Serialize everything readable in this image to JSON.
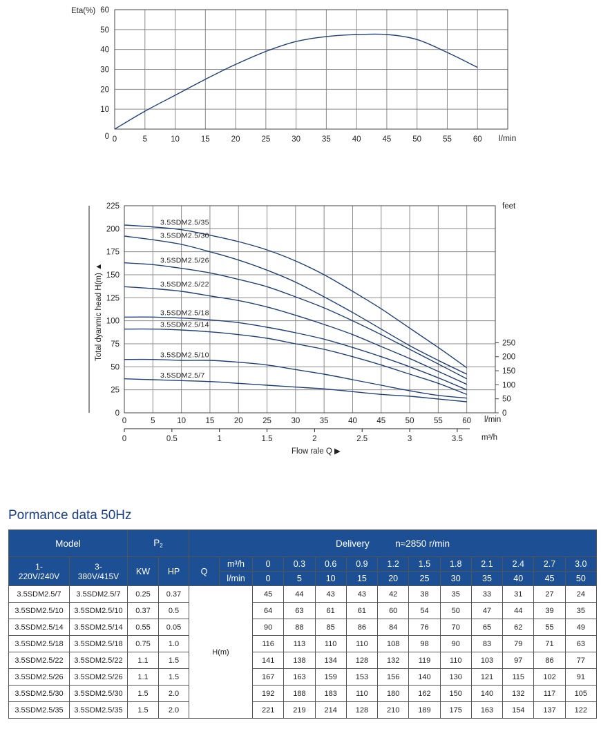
{
  "eff_chart": {
    "ylabel": "Eta(%)",
    "xunit": "l/min",
    "y_ticks": [
      "0",
      "10",
      "20",
      "30",
      "40",
      "50",
      "60"
    ],
    "x_ticks": [
      "0",
      "5",
      "10",
      "15",
      "20",
      "25",
      "30",
      "35",
      "40",
      "45",
      "50",
      "55",
      "60"
    ]
  },
  "head_chart": {
    "ylabel": "Total dyanmic head H(m) ▲",
    "right_unit": "feet",
    "y_ticks": [
      "0",
      "25",
      "50",
      "75",
      "100",
      "125",
      "150",
      "175",
      "200",
      "225"
    ],
    "feet_ticks": [
      "0",
      "50",
      "100",
      "150",
      "200",
      "250"
    ],
    "x_ticks": [
      "0",
      "5",
      "10",
      "15",
      "20",
      "25",
      "30",
      "35",
      "40",
      "45",
      "50",
      "55",
      "60"
    ],
    "x_unit": "l/min",
    "m3_ticks": [
      "0",
      "0.5",
      "1",
      "1.5",
      "2",
      "2.5",
      "3",
      "3.5"
    ],
    "m3_unit": "m³/h",
    "xlabel": "Flow rale Q ▶"
  },
  "chart_data": [
    {
      "type": "line",
      "title": "",
      "xlabel": "l/min",
      "ylabel": "Eta(%)",
      "xlim": [
        0,
        65
      ],
      "ylim": [
        0,
        60
      ],
      "grid": true,
      "series": [
        {
          "x": [
            0,
            5,
            10,
            15,
            20,
            25,
            30,
            35,
            40,
            45,
            50,
            55,
            60
          ],
          "values": [
            0,
            9,
            17,
            25,
            32.5,
            39,
            44,
            46.5,
            47.5,
            47.5,
            45,
            38.5,
            31
          ]
        }
      ]
    },
    {
      "type": "line",
      "title": "",
      "xlabel": "Flow rale Q",
      "ylabel": "Total dyanmic head H(m)",
      "xlim": [
        0,
        65
      ],
      "ylim": [
        0,
        225
      ],
      "y2label": "feet",
      "grid": true,
      "series": [
        {
          "name": "3.5SDM2.5/35",
          "x": [
            0,
            5,
            10,
            15,
            20,
            25,
            30,
            35,
            40,
            45,
            50,
            55,
            60
          ],
          "values": [
            204,
            202,
            199,
            193,
            186,
            177,
            165,
            150,
            132,
            113,
            92,
            71,
            49
          ]
        },
        {
          "name": "3.5SDM2.5/30",
          "x": [
            0,
            5,
            10,
            15,
            20,
            25,
            30,
            35,
            40,
            45,
            50,
            55,
            60
          ],
          "values": [
            192,
            188,
            183,
            175,
            166,
            155,
            142,
            126,
            109,
            91,
            73,
            57,
            42
          ]
        },
        {
          "name": "3.5SDM2.5/26",
          "x": [
            0,
            5,
            10,
            15,
            20,
            25,
            30,
            35,
            40,
            45,
            50,
            55,
            60
          ],
          "values": [
            163,
            161,
            157,
            152,
            145,
            137,
            126,
            114,
            100,
            85,
            69,
            53,
            37
          ]
        },
        {
          "name": "3.5SDM2.5/22",
          "x": [
            0,
            5,
            10,
            15,
            20,
            25,
            30,
            35,
            40,
            45,
            50,
            55,
            60
          ],
          "values": [
            137,
            135,
            132,
            127,
            122,
            115,
            106,
            96,
            85,
            72,
            59,
            45,
            31
          ]
        },
        {
          "name": "3.5SDM2.5/18",
          "x": [
            0,
            5,
            10,
            15,
            20,
            25,
            30,
            35,
            40,
            45,
            50,
            55,
            60
          ],
          "values": [
            104,
            104,
            103,
            101,
            98,
            93,
            87,
            80,
            71,
            61,
            50,
            38,
            25
          ]
        },
        {
          "name": "3.5SDM2.5/14",
          "x": [
            0,
            5,
            10,
            15,
            20,
            25,
            30,
            35,
            40,
            45,
            50,
            55,
            60
          ],
          "values": [
            91,
            91,
            90,
            88,
            85,
            81,
            75,
            69,
            61,
            52,
            42,
            32,
            20
          ]
        },
        {
          "name": "3.5SDM2.5/10",
          "x": [
            0,
            5,
            10,
            15,
            20,
            25,
            30,
            35,
            40,
            45,
            50,
            55,
            60
          ],
          "values": [
            58,
            58,
            57,
            57,
            55,
            52,
            47,
            42,
            36,
            30,
            24,
            19,
            16
          ]
        },
        {
          "name": "3.5SDM2.5/7",
          "x": [
            0,
            5,
            10,
            15,
            20,
            25,
            30,
            35,
            40,
            45,
            50,
            55,
            60
          ],
          "values": [
            37,
            36,
            35,
            34,
            32,
            30,
            28,
            26,
            23,
            20,
            18,
            15,
            12
          ]
        }
      ]
    }
  ],
  "section_title": "Pormance data 50Hz",
  "table": {
    "model_header": "Model",
    "p2_header": "P",
    "p2_sub": "2",
    "delivery_header": "Delivery          n≈2850 r/min",
    "col_1": "1-\n220V/240V",
    "col_3": "3-\n380V/415V",
    "kw": "KW",
    "hp": "HP",
    "q": "Q",
    "m3h_label": "m³/h",
    "lmin_label": "l/min",
    "m3h_values": [
      "0",
      "0.3",
      "0.6",
      "0.9",
      "1.2",
      "1.5",
      "1.8",
      "2.1",
      "2.4",
      "2.7",
      "3.0"
    ],
    "lmin_values": [
      "0",
      "5",
      "10",
      "15",
      "20",
      "25",
      "30",
      "35",
      "40",
      "45",
      "50"
    ],
    "h_label": "H(m)",
    "rows": [
      {
        "m1": "3.5SDM2.5/7",
        "m3": "3.5SDM2.5/7",
        "kw": "0.25",
        "hp": "0.37",
        "h": [
          "45",
          "44",
          "43",
          "43",
          "42",
          "38",
          "35",
          "33",
          "31",
          "27",
          "24"
        ]
      },
      {
        "m1": "3.5SDM2.5/10",
        "m3": "3.5SDM2.5/10",
        "kw": "0.37",
        "hp": "0.5",
        "h": [
          "64",
          "63",
          "61",
          "61",
          "60",
          "54",
          "50",
          "47",
          "44",
          "39",
          "35"
        ]
      },
      {
        "m1": "3.5SDM2.5/14",
        "m3": "3.5SDM2.5/14",
        "kw": "0.55",
        "hp": "0.05",
        "h": [
          "90",
          "88",
          "85",
          "86",
          "84",
          "76",
          "70",
          "65",
          "62",
          "55",
          "49"
        ]
      },
      {
        "m1": "3.5SDM2.5/18",
        "m3": "3.5SDM2.5/18",
        "kw": "0.75",
        "hp": "1.0",
        "h": [
          "116",
          "113",
          "110",
          "110",
          "108",
          "98",
          "90",
          "83",
          "79",
          "71",
          "63"
        ]
      },
      {
        "m1": "3.5SDM2.5/22",
        "m3": "3.5SDM2.5/22",
        "kw": "1.1",
        "hp": "1.5",
        "h": [
          "141",
          "138",
          "134",
          "128",
          "132",
          "119",
          "110",
          "103",
          "97",
          "86",
          "77"
        ]
      },
      {
        "m1": "3.5SDM2.5/26",
        "m3": "3.5SDM2.5/26",
        "kw": "1.1",
        "hp": "1.5",
        "h": [
          "167",
          "163",
          "159",
          "153",
          "156",
          "140",
          "130",
          "121",
          "115",
          "102",
          "91"
        ]
      },
      {
        "m1": "3.5SDM2.5/30",
        "m3": "3.5SDM2.5/30",
        "kw": "1.5",
        "hp": "2.0",
        "h": [
          "192",
          "188",
          "183",
          "110",
          "180",
          "162",
          "150",
          "140",
          "132",
          "117",
          "105"
        ]
      },
      {
        "m1": "3.5SDM2.5/35",
        "m3": "3.5SDM2.5/35",
        "kw": "1.5",
        "hp": "2.0",
        "h": [
          "221",
          "219",
          "214",
          "128",
          "210",
          "189",
          "175",
          "163",
          "154",
          "137",
          "122"
        ]
      }
    ]
  },
  "colors": {
    "curve": "#1f3f7a",
    "grid": "#8a8a8a",
    "header_bg": "#1c4f94",
    "title": "#1b3f86"
  }
}
